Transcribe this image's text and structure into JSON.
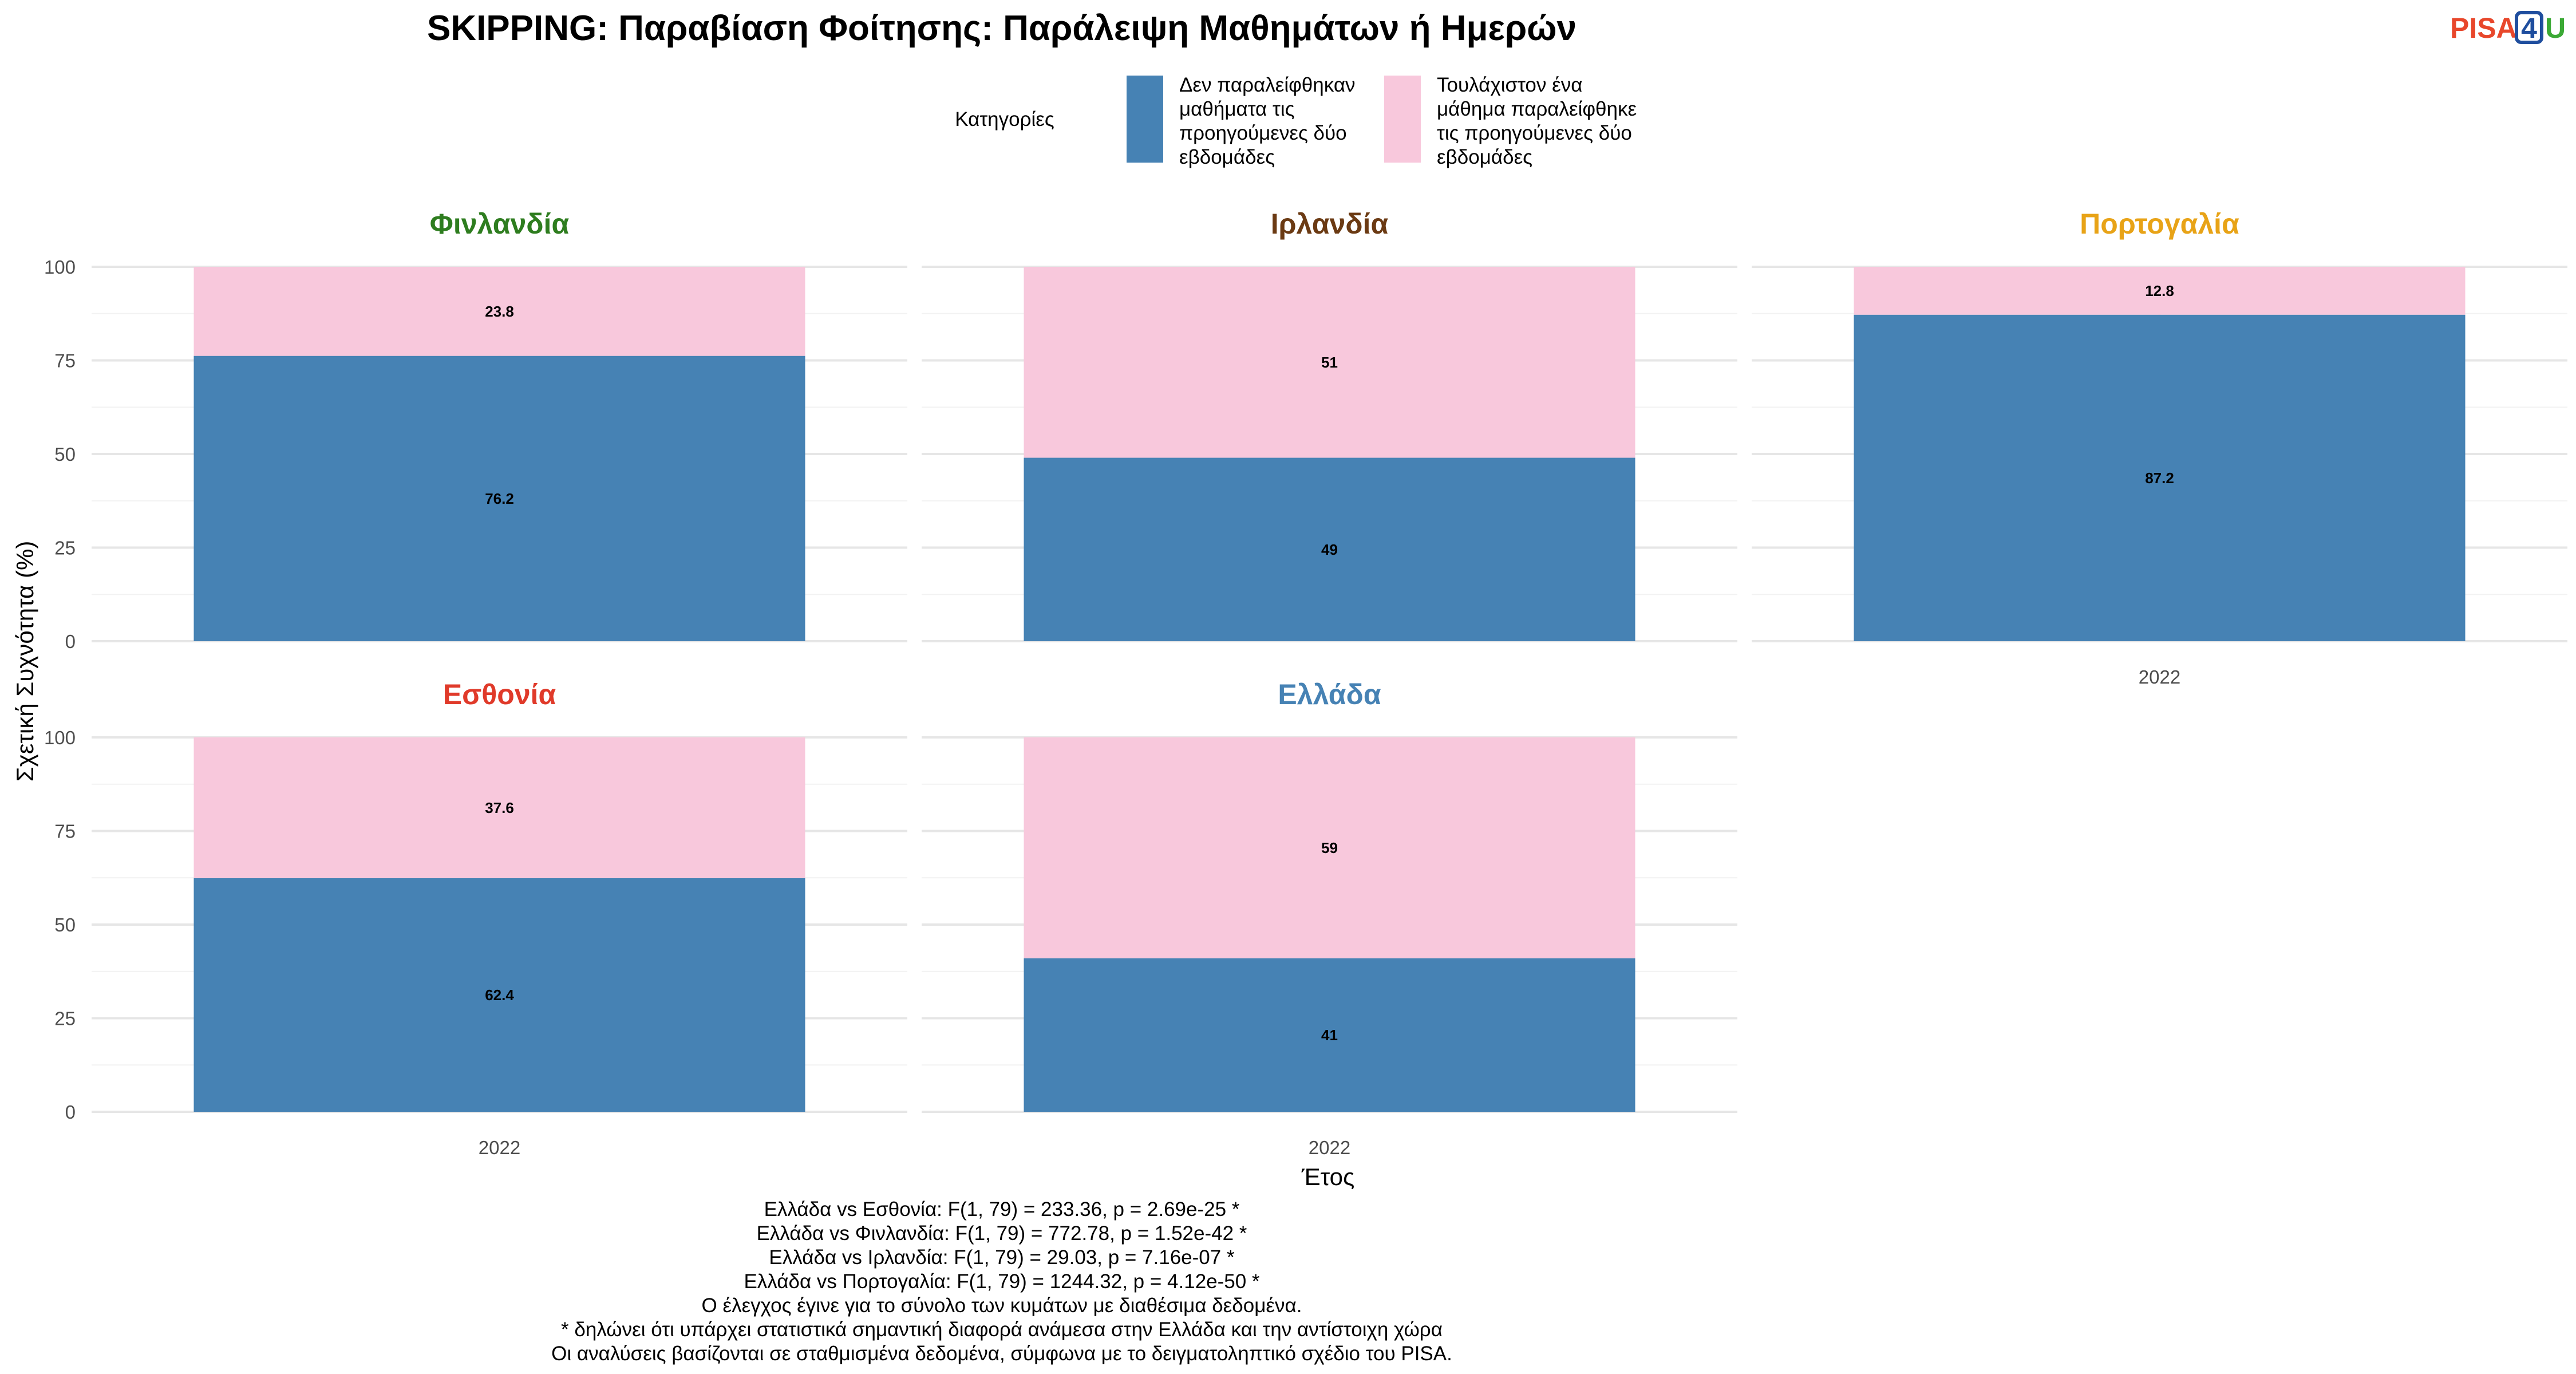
{
  "chart_data": {
    "type": "bar",
    "stacked": true,
    "title": "SKIPPING: Παραβίαση Φοίτησης: Παράλειψη Μαθημάτων ή Ημερών",
    "xlabel": "Έτος",
    "ylabel": "Σχετική Συχνότητα (%)",
    "ylim": [
      0,
      100
    ],
    "yticks": [
      "0",
      "25",
      "50",
      "75",
      "100"
    ],
    "grid": true,
    "legend": {
      "position": "top",
      "title": "Κατηγορίες",
      "items": [
        {
          "color": "#4682B4",
          "lines": [
            "Δεν παραλείφθηκαν",
            "μαθήματα τις",
            "προηγούμενες δύο",
            "εβδομάδες"
          ]
        },
        {
          "color": "#F8C8DC",
          "lines": [
            "Τουλάχιστον ένα",
            "μάθημα παραλείφθηκε",
            "τις προηγούμενες δύο",
            "εβδομάδες"
          ]
        }
      ]
    },
    "series_colors": [
      "#4682B4",
      "#F8C8DC"
    ],
    "facets": [
      {
        "name": "Φινλανδία",
        "color": "#2E7D1F",
        "year": "2022",
        "values": [
          76.2,
          23.8
        ],
        "labels": [
          "76.2",
          "23.8"
        ]
      },
      {
        "name": "Ιρλανδία",
        "color": "#6B3A13",
        "year": "2022",
        "values": [
          49,
          51
        ],
        "labels": [
          "49",
          "51"
        ]
      },
      {
        "name": "Πορτογαλία",
        "color": "#E8A317",
        "year": "2022",
        "values": [
          87.2,
          12.8
        ],
        "labels": [
          "87.2",
          "12.8"
        ]
      },
      {
        "name": "Εσθονία",
        "color": "#E03A2A",
        "year": "2022",
        "values": [
          62.4,
          37.6
        ],
        "labels": [
          "62.4",
          "37.6"
        ]
      },
      {
        "name": "Ελλάδα",
        "color": "#4682B4",
        "year": "2022",
        "values": [
          41,
          59
        ],
        "labels": [
          "41",
          "59"
        ]
      }
    ],
    "notes": [
      "Ελλάδα vs Εσθονία: F(1, 79) = 233.36, p = 2.69e-25 *",
      "Ελλάδα vs Φινλανδία: F(1, 79) = 772.78, p = 1.52e-42 *",
      "Ελλάδα vs Ιρλανδία: F(1, 79) = 29.03, p = 7.16e-07 *",
      "Ελλάδα vs Πορτογαλία: F(1, 79) = 1244.32, p = 4.12e-50 *",
      "Ο έλεγχος έγινε για το σύνολο των κυμάτων με διαθέσιμα δεδομένα.",
      "* δηλώνει ότι υπάρχει στατιστικά σημαντική διαφορά ανάμεσα στην Ελλάδα και την αντίστοιχη χώρα",
      "Οι αναλύσεις βασίζονται σε σταθμισμένα δεδομένα, σύμφωνα με το δειγματοληπτικό σχέδιο του PISA."
    ]
  },
  "logo": {
    "part1": "PISA",
    "part2": "4",
    "part3": "U",
    "color1": "#E8472B",
    "color2": "#1F4E9E",
    "color3": "#3BA935"
  }
}
